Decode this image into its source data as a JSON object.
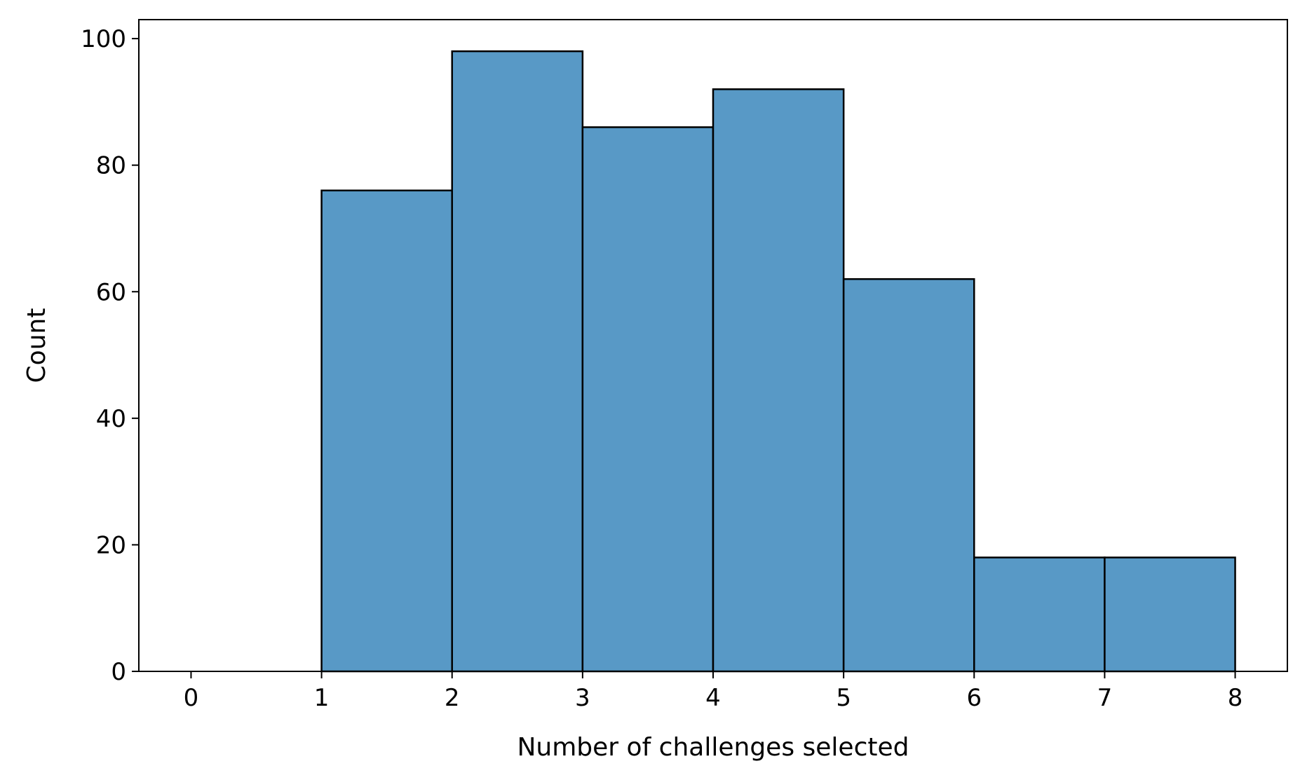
{
  "chart_data": {
    "type": "bar",
    "subtype": "histogram",
    "bin_edges": [
      0,
      1,
      2,
      3,
      4,
      5,
      6,
      7,
      8
    ],
    "values": [
      0,
      76,
      98,
      86,
      92,
      62,
      18,
      18
    ],
    "xlabel": "Number of challenges selected",
    "ylabel": "Count",
    "xlim": [
      -0.4,
      8.4
    ],
    "ylim": [
      0,
      103
    ],
    "xticks": [
      0,
      1,
      2,
      3,
      4,
      5,
      6,
      7,
      8
    ],
    "yticks": [
      0,
      20,
      40,
      60,
      80,
      100
    ],
    "grid": false,
    "legend": "none",
    "bar_color": "#5899c6",
    "edge_color": "#000000"
  }
}
